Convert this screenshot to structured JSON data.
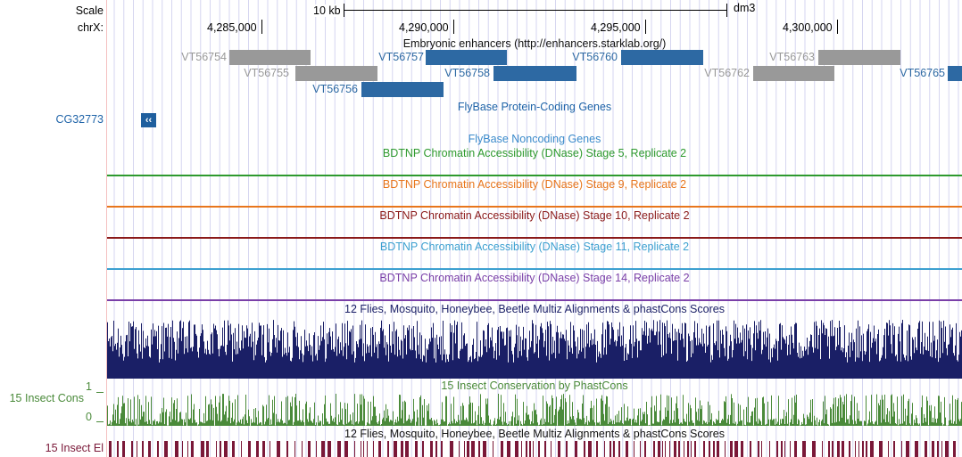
{
  "left_labels": {
    "scale": "Scale",
    "chrom": "chrX:",
    "cg32773": "CG32773",
    "insect_cons": "15 Insect Cons",
    "insect_el": "15 Insect El",
    "cons_max": "1",
    "cons_min": "0"
  },
  "ruler": {
    "scale_label": "10 kb",
    "assembly": "dm3",
    "ticks": [
      "4,285,000",
      "4,290,000",
      "4,295,000",
      "4,300,000"
    ]
  },
  "enhancers": {
    "title": "Embryonic enhancers (http://enhancers.starklab.org/)",
    "items": [
      {
        "id": "VT56754",
        "color": "#999999"
      },
      {
        "id": "VT56755",
        "color": "#999999"
      },
      {
        "id": "VT56756",
        "color": "#2d69a3"
      },
      {
        "id": "VT56757",
        "color": "#2d69a3"
      },
      {
        "id": "VT56758",
        "color": "#2d69a3"
      },
      {
        "id": "VT56760",
        "color": "#2d69a3"
      },
      {
        "id": "VT56762",
        "color": "#999999"
      },
      {
        "id": "VT56763",
        "color": "#999999"
      },
      {
        "id": "VT56765",
        "color": "#2d69a3"
      }
    ]
  },
  "tracks": {
    "flybase_coding": "FlyBase Protein-Coding Genes",
    "flybase_noncoding": "FlyBase Noncoding Genes",
    "dnase": [
      {
        "title": "BDTNP Chromatin Accessibility (DNase) Stage 5, Replicate 2",
        "color": "#2e9a2e"
      },
      {
        "title": "BDTNP Chromatin Accessibility (DNase) Stage 9, Replicate 2",
        "color": "#e8761c"
      },
      {
        "title": "BDTNP Chromatin Accessibility (DNase) Stage 10, Replicate 2",
        "color": "#8b1a1a"
      },
      {
        "title": "BDTNP Chromatin Accessibility (DNase) Stage 11, Replicate 2",
        "color": "#3ca0d0"
      },
      {
        "title": "BDTNP Chromatin Accessibility (DNase) Stage 14, Replicate 2",
        "color": "#7a3fa8"
      }
    ],
    "multiz_title": "12 Flies, Mosquito, Honeybee, Beetle Multiz Alignments & phastCons Scores",
    "phastcons_title": "15 Insect Conservation by PhastCons",
    "elements_title": "12 Flies, Mosquito, Honeybee, Beetle Multiz Alignments & phastCons Scores"
  },
  "colors": {
    "gene_blue": "#1f5f9e",
    "multiz_navy": "#1a1f66",
    "phastcons_green": "#4a8a3a",
    "elements_maroon": "#7a1838",
    "gridline": "#d6d6f0",
    "coding_title": "#1e63a8",
    "noncoding_title": "#3a8acb"
  }
}
